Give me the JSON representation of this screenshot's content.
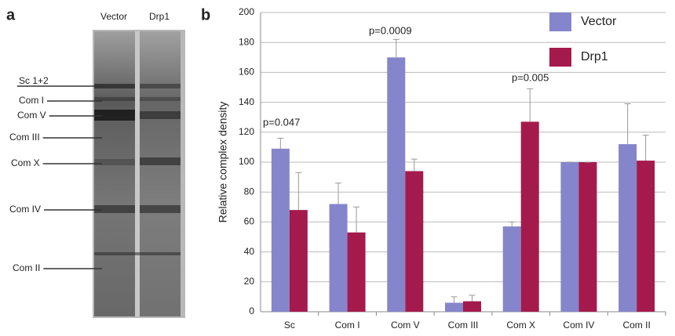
{
  "panel_labels": [
    "a",
    "b"
  ],
  "gel": {
    "lanes": [
      "Vector",
      "Drp1"
    ],
    "bands": [
      "Sc 1+2",
      "Com I",
      "Com V",
      "Com III",
      "Com X",
      "Com IV",
      "Com II"
    ]
  },
  "chart_data": {
    "type": "bar",
    "y_label": "Relative complex density",
    "categories": [
      "Sc",
      "Com I",
      "Com V",
      "Com III",
      "Com X",
      "Com IV",
      "Com II"
    ],
    "series": [
      {
        "name": "Vector",
        "color": "#8585cc",
        "values": [
          109,
          72,
          170,
          6,
          57,
          100,
          112
        ],
        "errors": [
          7,
          14,
          12,
          4,
          3,
          0,
          27
        ]
      },
      {
        "name": "Drp1",
        "color": "#a51a4c",
        "values": [
          68,
          53,
          94,
          7,
          127,
          100,
          101
        ],
        "errors": [
          25,
          17,
          8,
          4,
          22,
          0,
          17
        ]
      }
    ],
    "annotations": [
      "p=0.047",
      "p=0.0009",
      "p=0.005"
    ],
    "ylim": [
      0,
      200
    ],
    "yticks": [
      0,
      20,
      40,
      60,
      80,
      100,
      120,
      140,
      160,
      180,
      200
    ],
    "grid": true
  }
}
